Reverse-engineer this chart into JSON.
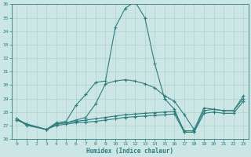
{
  "bg_color": "#cce5e5",
  "line_color": "#2e7d7d",
  "grid_color": "#aacccc",
  "xlabel": "Humidex (Indice chaleur)",
  "ylim": [
    26,
    36
  ],
  "xlim": [
    -0.5,
    23.5
  ],
  "yticks": [
    26,
    27,
    28,
    29,
    30,
    31,
    32,
    33,
    34,
    35,
    36
  ],
  "xticks": [
    0,
    1,
    2,
    3,
    4,
    5,
    6,
    7,
    8,
    9,
    10,
    11,
    12,
    13,
    14,
    15,
    16,
    17,
    18,
    19,
    20,
    21,
    22,
    23
  ],
  "line1_x": [
    0,
    1,
    3,
    4,
    5,
    6,
    7,
    8,
    9,
    10,
    11,
    12,
    13,
    14,
    15,
    16,
    17,
    18
  ],
  "line1_y": [
    27.5,
    27.0,
    26.7,
    27.2,
    27.3,
    28.5,
    29.3,
    30.2,
    30.3,
    34.3,
    35.7,
    36.2,
    35.0,
    31.6,
    29.0,
    28.2,
    26.5,
    26.5
  ],
  "line2_x": [
    0,
    1,
    3,
    4,
    5,
    6,
    7,
    8,
    9,
    10,
    11,
    12,
    13,
    14,
    15,
    16,
    17,
    18,
    19,
    20,
    21,
    22,
    23
  ],
  "line2_y": [
    27.5,
    27.1,
    26.7,
    27.1,
    27.2,
    27.4,
    27.6,
    28.6,
    30.1,
    30.3,
    30.4,
    30.3,
    30.1,
    29.8,
    29.2,
    28.8,
    27.8,
    26.7,
    28.3,
    28.2,
    28.1,
    28.1,
    29.2
  ],
  "line3_x": [
    0,
    1,
    3,
    4,
    5,
    6,
    7,
    8,
    9,
    10,
    11,
    12,
    13,
    14,
    15,
    16,
    17,
    18,
    19,
    20,
    21,
    22,
    23
  ],
  "line3_y": [
    27.4,
    27.1,
    26.7,
    27.1,
    27.2,
    27.3,
    27.4,
    27.5,
    27.6,
    27.7,
    27.8,
    27.85,
    27.9,
    27.95,
    28.0,
    28.05,
    26.6,
    26.6,
    28.1,
    28.2,
    28.1,
    28.1,
    29.0
  ],
  "line4_x": [
    0,
    1,
    3,
    4,
    5,
    6,
    7,
    8,
    9,
    10,
    11,
    12,
    13,
    14,
    15,
    16,
    17,
    18,
    19,
    20,
    21,
    22,
    23
  ],
  "line4_y": [
    27.4,
    27.1,
    26.7,
    27.0,
    27.1,
    27.2,
    27.25,
    27.3,
    27.4,
    27.5,
    27.6,
    27.65,
    27.7,
    27.75,
    27.8,
    27.85,
    26.5,
    26.5,
    27.9,
    28.0,
    27.9,
    27.9,
    28.8
  ]
}
